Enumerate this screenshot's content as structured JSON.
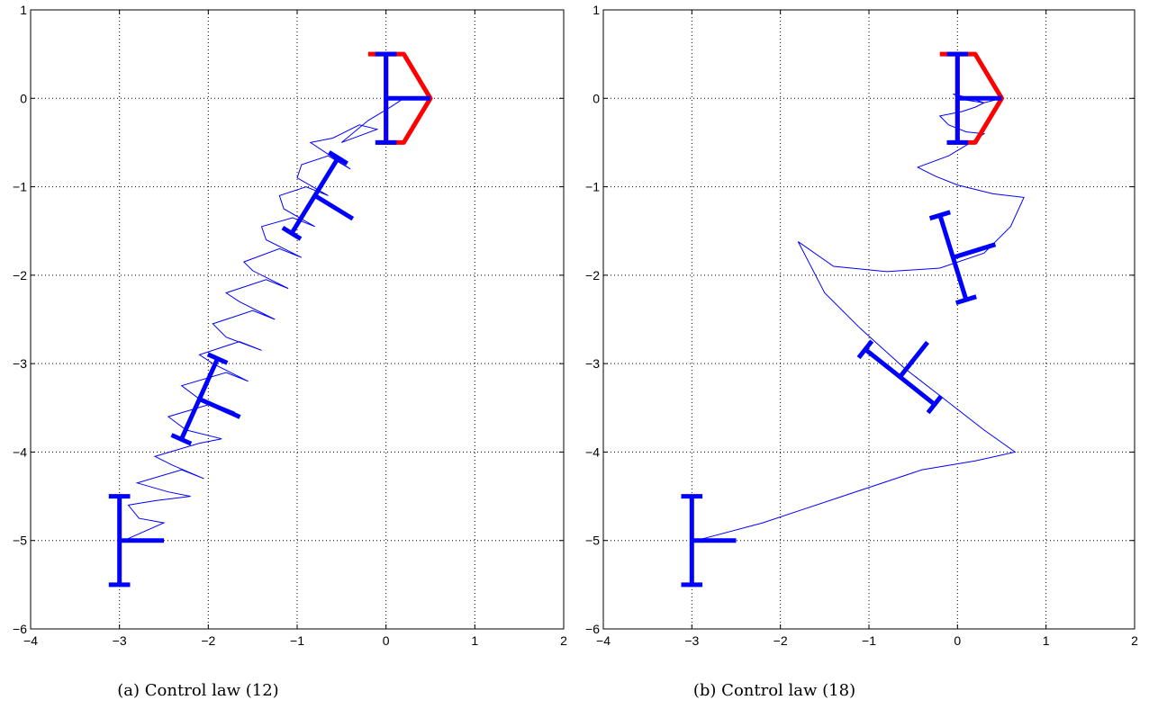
{
  "chart_data": [
    {
      "type": "line",
      "caption": "(a) Control law (12)",
      "xlim": [
        -4,
        2
      ],
      "ylim": [
        -6,
        1
      ],
      "grid": true,
      "xticks": [
        -4,
        -3,
        -2,
        -1,
        0,
        1,
        2
      ],
      "yticks": [
        -6,
        -5,
        -4,
        -3,
        -2,
        -1,
        0,
        1
      ],
      "xtick_labels": [
        "−4",
        "−3",
        "−2",
        "−1",
        "0",
        "1",
        "2"
      ],
      "ytick_labels": [
        "−6",
        "−5",
        "−4",
        "−3",
        "−2",
        "−1",
        "0",
        "1"
      ],
      "line_color": "#0000ff",
      "goal_color": "#ff0000",
      "trajectory": {
        "x": [
          -2.95,
          -2.5,
          -2.78,
          -2.9,
          -2.6,
          -2.2,
          -2.45,
          -2.8,
          -2.3,
          -2.05,
          -2.4,
          -2.6,
          -2.1,
          -1.85,
          -2.25,
          -2.45,
          -1.95,
          -1.7,
          -2.1,
          -2.3,
          -1.8,
          -1.55,
          -1.95,
          -2.1,
          -1.65,
          -1.4,
          -1.8,
          -1.95,
          -1.5,
          -1.25,
          -1.65,
          -1.8,
          -1.35,
          -1.1,
          -1.5,
          -1.6,
          -1.2,
          -0.95,
          -1.35,
          -1.4,
          -1.05,
          -0.8,
          -1.15,
          -1.2,
          -0.9,
          -0.65,
          -1.0,
          -0.95,
          -0.65,
          -0.4,
          -0.85,
          -0.6,
          -0.3,
          -0.1,
          -0.5,
          -0.2,
          0.05,
          0.2
        ],
        "y": [
          -5.0,
          -4.8,
          -4.75,
          -4.6,
          -4.55,
          -4.5,
          -4.45,
          -4.35,
          -4.2,
          -4.3,
          -4.15,
          -4.05,
          -3.9,
          -3.85,
          -3.75,
          -3.6,
          -3.45,
          -3.55,
          -3.4,
          -3.25,
          -3.1,
          -3.2,
          -3.0,
          -2.9,
          -2.75,
          -2.85,
          -2.7,
          -2.55,
          -2.4,
          -2.5,
          -2.3,
          -2.2,
          -2.05,
          -2.15,
          -1.95,
          -1.85,
          -1.7,
          -1.8,
          -1.6,
          -1.45,
          -1.35,
          -1.45,
          -1.25,
          -1.1,
          -1.0,
          -1.1,
          -0.9,
          -0.75,
          -0.65,
          -0.8,
          -0.5,
          -0.45,
          -0.3,
          -0.35,
          -0.5,
          -0.25,
          -0.1,
          0.0
        ]
      },
      "robots": [
        {
          "x": -3.0,
          "y": -5.0,
          "theta": 0,
          "color": "#0000ff"
        },
        {
          "x": -2.1,
          "y": -3.4,
          "theta": -0.42,
          "color": "#0000ff"
        },
        {
          "x": -0.8,
          "y": -1.1,
          "theta": -0.55,
          "color": "#0000ff"
        },
        {
          "x": 0.0,
          "y": 0.0,
          "theta": 0,
          "color": "#0000ff"
        }
      ],
      "goal": {
        "x": 0.0,
        "y": 0.0
      }
    },
    {
      "type": "line",
      "caption": "(b) Control law (18)",
      "xlim": [
        -4,
        2
      ],
      "ylim": [
        -6,
        1
      ],
      "grid": true,
      "xticks": [
        -4,
        -3,
        -2,
        -1,
        0,
        1,
        2
      ],
      "yticks": [
        -6,
        -5,
        -4,
        -3,
        -2,
        -1,
        0,
        1
      ],
      "xtick_labels": [
        "−4",
        "−3",
        "−2",
        "−1",
        "0",
        "1",
        "2"
      ],
      "ytick_labels": [
        "−6",
        "−5",
        "−4",
        "−3",
        "−2",
        "−1",
        "0",
        "1"
      ],
      "line_color": "#0000ff",
      "goal_color": "#ff0000",
      "trajectory": {
        "x": [
          -2.95,
          -2.2,
          -1.3,
          -0.4,
          0.2,
          0.65,
          0.3,
          -0.15,
          -0.6,
          -1.1,
          -1.5,
          -1.8,
          -1.4,
          -0.8,
          -0.2,
          0.3,
          0.6,
          0.75,
          0.4,
          0.0,
          -0.25,
          -0.45,
          -0.1,
          0.15,
          0.3,
          0.1,
          -0.1,
          -0.2,
          0.05,
          0.2,
          0.3,
          0.1,
          -0.05,
          0.15,
          0.3,
          0.5
        ],
        "y": [
          -5.0,
          -4.8,
          -4.5,
          -4.2,
          -4.1,
          -4.0,
          -3.75,
          -3.4,
          -3.05,
          -2.6,
          -2.2,
          -1.62,
          -1.9,
          -1.96,
          -1.92,
          -1.75,
          -1.45,
          -1.12,
          -1.08,
          -0.98,
          -0.88,
          -0.78,
          -0.65,
          -0.5,
          -0.4,
          -0.38,
          -0.3,
          -0.2,
          -0.15,
          -0.1,
          -0.05,
          -0.02,
          0.05,
          0.0,
          -0.05,
          0.0
        ]
      },
      "robots": [
        {
          "x": -3.0,
          "y": -5.0,
          "theta": 0,
          "color": "#0000ff"
        },
        {
          "x": -0.65,
          "y": -3.15,
          "theta": 0.9,
          "color": "#0000ff"
        },
        {
          "x": -0.05,
          "y": -1.8,
          "theta": 0.3,
          "color": "#0000ff"
        },
        {
          "x": 0.0,
          "y": 0.0,
          "theta": 0,
          "color": "#0000ff"
        }
      ],
      "goal": {
        "x": 0.0,
        "y": 0.0
      }
    }
  ]
}
